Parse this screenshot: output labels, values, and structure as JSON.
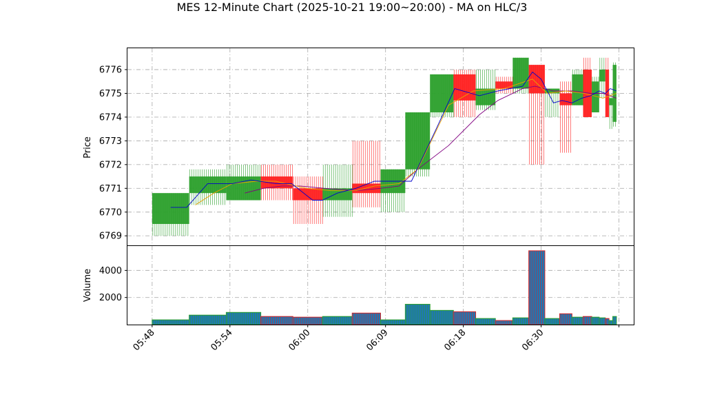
{
  "chart_data": {
    "type": "candlestick",
    "title": "MES 12-Minute Chart (2025-10-21 19:00~20:00) - MA on HLC/3",
    "price_panel": {
      "ylabel": "Price",
      "ylim": [
        6768.6,
        6776.9
      ],
      "yticks": [
        6769,
        6770,
        6771,
        6772,
        6773,
        6774,
        6775,
        6776
      ]
    },
    "volume_panel": {
      "ylabel": "Volume",
      "ylim": [
        0,
        5800
      ],
      "yticks": [
        2000,
        4000
      ]
    },
    "x_axis": {
      "xlim": [
        0,
        41.0
      ],
      "tick_positions": [
        2,
        8.3,
        14.6,
        20.9,
        27.2,
        33.5,
        39.8
      ],
      "tick_labels": [
        "05:48",
        "05:54",
        "06:00",
        "06:09",
        "06:18",
        "06:30",
        ""
      ]
    },
    "colors": {
      "up": "#2ca02c",
      "down": "#ff2020",
      "ma_fast": "#0000cc",
      "ma_mid": "#e8a000",
      "ma_slow": "#800080",
      "volume_fill": "#1f77b4",
      "volume_edge_up": "#2ca02c",
      "volume_edge_down": "#d62728",
      "grid": "#b0b0b0"
    },
    "bars": [
      {
        "x0": 2.0,
        "x1": 5.0,
        "open": 6769.5,
        "high": 6770.8,
        "low": 6769.0,
        "close": 6770.8,
        "volume": 350
      },
      {
        "x0": 5.0,
        "x1": 8.0,
        "open": 6770.8,
        "high": 6771.8,
        "low": 6770.3,
        "close": 6771.5,
        "volume": 700
      },
      {
        "x0": 8.0,
        "x1": 10.8,
        "open": 6770.5,
        "high": 6772.0,
        "low": 6770.5,
        "close": 6771.5,
        "volume": 900
      },
      {
        "x0": 10.8,
        "x1": 13.4,
        "open": 6771.5,
        "high": 6772.0,
        "low": 6770.5,
        "close": 6771.0,
        "volume": 600
      },
      {
        "x0": 13.4,
        "x1": 15.8,
        "open": 6771.0,
        "high": 6771.5,
        "low": 6769.5,
        "close": 6770.5,
        "volume": 550
      },
      {
        "x0": 15.8,
        "x1": 18.2,
        "open": 6770.5,
        "high": 6772.0,
        "low": 6769.8,
        "close": 6771.0,
        "volume": 600
      },
      {
        "x0": 18.2,
        "x1": 20.5,
        "open": 6771.2,
        "high": 6773.0,
        "low": 6770.2,
        "close": 6770.8,
        "volume": 850
      },
      {
        "x0": 20.5,
        "x1": 22.5,
        "open": 6770.8,
        "high": 6771.8,
        "low": 6770.0,
        "close": 6771.8,
        "volume": 350
      },
      {
        "x0": 22.5,
        "x1": 24.5,
        "open": 6771.8,
        "high": 6774.2,
        "low": 6771.5,
        "close": 6774.2,
        "volume": 1500
      },
      {
        "x0": 24.5,
        "x1": 26.4,
        "open": 6774.2,
        "high": 6775.8,
        "low": 6774.0,
        "close": 6775.8,
        "volume": 1050
      },
      {
        "x0": 26.4,
        "x1": 28.2,
        "open": 6775.8,
        "high": 6776.0,
        "low": 6774.0,
        "close": 6774.7,
        "volume": 950
      },
      {
        "x0": 28.2,
        "x1": 29.8,
        "open": 6774.5,
        "high": 6776.0,
        "low": 6774.3,
        "close": 6775.2,
        "volume": 450
      },
      {
        "x0": 29.8,
        "x1": 31.2,
        "open": 6775.5,
        "high": 6775.7,
        "low": 6775.0,
        "close": 6775.2,
        "volume": 300
      },
      {
        "x0": 31.2,
        "x1": 32.5,
        "open": 6775.2,
        "high": 6776.5,
        "low": 6775.0,
        "close": 6776.5,
        "volume": 500
      },
      {
        "x0": 32.5,
        "x1": 33.8,
        "open": 6776.2,
        "high": 6776.2,
        "low": 6772.0,
        "close": 6775.0,
        "volume": 5450
      },
      {
        "x0": 33.8,
        "x1": 35.0,
        "open": 6775.0,
        "high": 6775.2,
        "low": 6774.0,
        "close": 6775.2,
        "volume": 450
      },
      {
        "x0": 35.0,
        "x1": 36.0,
        "open": 6775.0,
        "high": 6775.5,
        "low": 6772.5,
        "close": 6774.5,
        "volume": 800
      },
      {
        "x0": 36.0,
        "x1": 36.9,
        "open": 6774.5,
        "high": 6776.0,
        "low": 6774.5,
        "close": 6775.8,
        "volume": 550
      },
      {
        "x0": 36.9,
        "x1": 37.6,
        "open": 6776.0,
        "high": 6776.5,
        "low": 6774.0,
        "close": 6774.0,
        "volume": 600
      },
      {
        "x0": 37.6,
        "x1": 38.2,
        "open": 6774.2,
        "high": 6775.7,
        "low": 6774.2,
        "close": 6775.5,
        "volume": 550
      },
      {
        "x0": 38.2,
        "x1": 38.7,
        "open": 6775.5,
        "high": 6776.5,
        "low": 6774.8,
        "close": 6776.0,
        "volume": 500
      },
      {
        "x0": 38.7,
        "x1": 39.0,
        "open": 6776.0,
        "high": 6776.5,
        "low": 6774.0,
        "close": 6774.0,
        "volume": 450
      },
      {
        "x0": 39.0,
        "x1": 39.3,
        "open": 6774.5,
        "high": 6775.0,
        "low": 6773.5,
        "close": 6774.8,
        "volume": 300
      },
      {
        "x0": 39.3,
        "x1": 39.6,
        "open": 6773.8,
        "high": 6776.3,
        "low": 6773.6,
        "close": 6776.2,
        "volume": 600
      }
    ],
    "ma_fast": [
      [
        3.5,
        6770.2
      ],
      [
        4.8,
        6770.2
      ],
      [
        6.5,
        6771.2
      ],
      [
        8.5,
        6771.2
      ],
      [
        10.0,
        6771.35
      ],
      [
        12.0,
        6771.2
      ],
      [
        13.3,
        6771.2
      ],
      [
        15.0,
        6770.5
      ],
      [
        15.8,
        6770.5
      ],
      [
        17.0,
        6770.8
      ],
      [
        18.5,
        6771.0
      ],
      [
        20.0,
        6771.3
      ],
      [
        22.0,
        6771.3
      ],
      [
        23.0,
        6771.3
      ],
      [
        25.0,
        6773.5
      ],
      [
        26.5,
        6775.2
      ],
      [
        28.5,
        6774.9
      ],
      [
        30.0,
        6775.1
      ],
      [
        32.0,
        6775.3
      ],
      [
        32.8,
        6775.9
      ],
      [
        33.5,
        6775.6
      ],
      [
        34.5,
        6774.6
      ],
      [
        35.2,
        6774.7
      ],
      [
        36.0,
        6774.6
      ],
      [
        36.8,
        6774.8
      ],
      [
        37.5,
        6774.9
      ],
      [
        38.2,
        6775.1
      ],
      [
        38.7,
        6775.0
      ],
      [
        39.1,
        6775.2
      ],
      [
        39.6,
        6775.1
      ]
    ],
    "ma_mid": [
      [
        5.5,
        6770.3
      ],
      [
        7.0,
        6770.8
      ],
      [
        8.5,
        6771.2
      ],
      [
        10.5,
        6771.3
      ],
      [
        12.0,
        6771.3
      ],
      [
        14.5,
        6771.0
      ],
      [
        16.5,
        6770.9
      ],
      [
        18.5,
        6770.9
      ],
      [
        20.0,
        6771.1
      ],
      [
        22.0,
        6771.2
      ],
      [
        23.5,
        6771.8
      ],
      [
        26.0,
        6774.5
      ],
      [
        28.0,
        6775.1
      ],
      [
        30.5,
        6775.2
      ],
      [
        32.8,
        6775.6
      ],
      [
        34.0,
        6775.0
      ],
      [
        35.5,
        6775.1
      ],
      [
        37.0,
        6775.0
      ],
      [
        38.5,
        6774.8
      ],
      [
        39.6,
        6775.0
      ]
    ],
    "ma_slow": [
      [
        9.5,
        6770.8
      ],
      [
        11.0,
        6771.0
      ],
      [
        12.5,
        6771.1
      ],
      [
        14.0,
        6771.1
      ],
      [
        16.0,
        6771.0
      ],
      [
        18.5,
        6770.9
      ],
      [
        20.5,
        6771.0
      ],
      [
        22.0,
        6771.1
      ],
      [
        23.5,
        6771.8
      ],
      [
        26.0,
        6772.8
      ],
      [
        28.5,
        6774.1
      ],
      [
        30.0,
        6774.7
      ],
      [
        32.0,
        6775.2
      ],
      [
        33.0,
        6775.3
      ],
      [
        34.5,
        6775.1
      ],
      [
        36.0,
        6775.1
      ],
      [
        37.5,
        6775.0
      ],
      [
        38.5,
        6775.0
      ],
      [
        39.6,
        6774.8
      ]
    ]
  }
}
